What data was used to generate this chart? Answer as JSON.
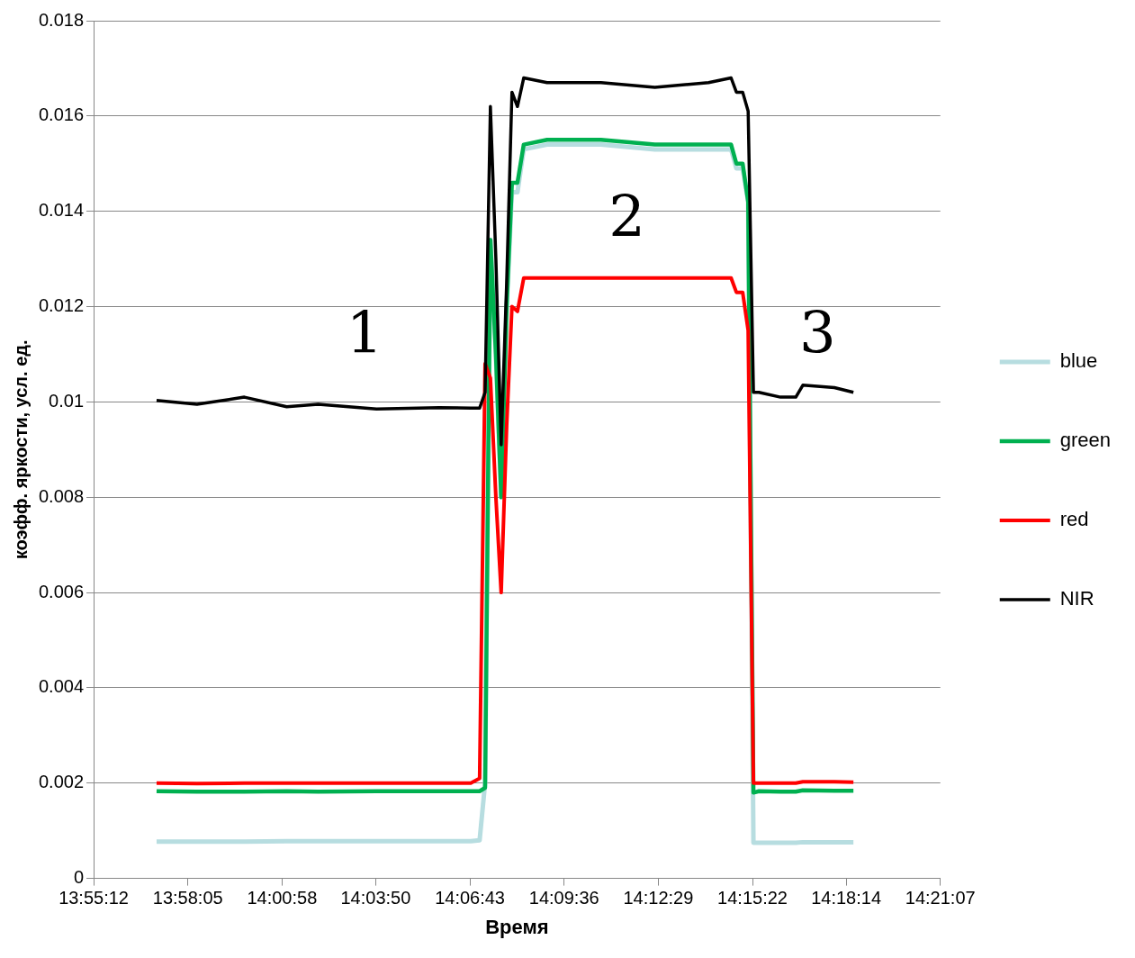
{
  "chart_data": {
    "type": "line",
    "xlabel": "Время",
    "ylabel": "коэфф. яркости, усл. ед.",
    "x": [
      13.9521,
      13.9727,
      13.9969,
      14.0185,
      14.0345,
      14.0643,
      14.0963,
      14.1124,
      14.1169,
      14.1197,
      14.1224,
      14.1252,
      14.1279,
      14.1307,
      14.1334,
      14.1362,
      14.1394,
      14.1513,
      14.1788,
      14.2063,
      14.2337,
      14.2452,
      14.2479,
      14.2511,
      14.2539,
      14.2566,
      14.2594,
      14.2704,
      14.2782,
      14.2818,
      14.2979,
      14.3076
    ],
    "series": [
      {
        "name": "blue",
        "color": "#b7dde0",
        "values": [
          0.00077,
          0.00077,
          0.00077,
          0.00078,
          0.00078,
          0.00078,
          0.00078,
          0.00078,
          0.0008,
          0.002,
          0.0134,
          0.011,
          0.008,
          0.012,
          0.0144,
          0.0144,
          0.0153,
          0.0154,
          0.0154,
          0.0153,
          0.0153,
          0.0153,
          0.0149,
          0.0149,
          0.0142,
          0.00075,
          0.00075,
          0.00075,
          0.00075,
          0.00076,
          0.00076,
          0.00076
        ]
      },
      {
        "name": "green",
        "color": "#00b050",
        "values": [
          0.00183,
          0.00182,
          0.00182,
          0.00183,
          0.00182,
          0.00183,
          0.00183,
          0.00183,
          0.00183,
          0.0019,
          0.0134,
          0.011,
          0.008,
          0.012,
          0.0146,
          0.0146,
          0.0154,
          0.0155,
          0.0155,
          0.0154,
          0.0154,
          0.0154,
          0.015,
          0.015,
          0.0142,
          0.0018,
          0.00183,
          0.00182,
          0.00182,
          0.00185,
          0.00184,
          0.00184
        ]
      },
      {
        "name": "red",
        "color": "#ff0000",
        "values": [
          0.002,
          0.00199,
          0.002,
          0.002,
          0.002,
          0.002,
          0.002,
          0.002,
          0.0021,
          0.0108,
          0.0105,
          0.008,
          0.006,
          0.0095,
          0.012,
          0.0119,
          0.0126,
          0.0126,
          0.0126,
          0.0126,
          0.0126,
          0.0126,
          0.0123,
          0.0123,
          0.0115,
          0.002,
          0.002,
          0.002,
          0.002,
          0.00203,
          0.00203,
          0.00202
        ]
      },
      {
        "name": "NIR",
        "color": "#000000",
        "values": [
          0.01003,
          0.00995,
          0.0101,
          0.0099,
          0.00995,
          0.00985,
          0.00988,
          0.00987,
          0.00987,
          0.0102,
          0.0162,
          0.013,
          0.0091,
          0.0125,
          0.0165,
          0.0162,
          0.0168,
          0.0167,
          0.0167,
          0.0166,
          0.0167,
          0.0168,
          0.0165,
          0.0165,
          0.0161,
          0.0102,
          0.0102,
          0.0101,
          0.0101,
          0.01035,
          0.0103,
          0.0102
        ]
      }
    ],
    "xlim": [
      13.92,
      14.351944
    ],
    "xticks": [
      {
        "value": 13.92,
        "label": "13:55:12"
      },
      {
        "value": 13.968056,
        "label": "13:58:05"
      },
      {
        "value": 14.016111,
        "label": "14:00:58"
      },
      {
        "value": 14.063889,
        "label": "14:03:50"
      },
      {
        "value": 14.111944,
        "label": "14:06:43"
      },
      {
        "value": 14.16,
        "label": "14:09:36"
      },
      {
        "value": 14.208056,
        "label": "14:12:29"
      },
      {
        "value": 14.256111,
        "label": "14:15:22"
      },
      {
        "value": 14.303889,
        "label": "14:18:14"
      },
      {
        "value": 14.351944,
        "label": "14:21:07"
      }
    ],
    "ylim": [
      0,
      0.018
    ],
    "yticks": [
      0,
      0.002,
      0.004,
      0.006,
      0.008,
      0.01,
      0.012,
      0.014,
      0.016,
      0.018
    ],
    "grid": "y",
    "legend": "right",
    "marker": "none",
    "line_style": "solid",
    "annotations": [
      "1",
      "2",
      "3"
    ]
  }
}
